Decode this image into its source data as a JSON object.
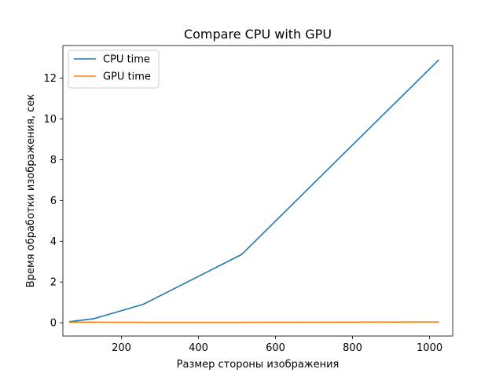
{
  "chart_data": {
    "type": "line",
    "title": "Compare CPU with GPU",
    "xlabel": "Размер стороны изображения",
    "ylabel": "Время обработки изображения, сек",
    "xlim": [
      48,
      1060
    ],
    "ylim": [
      -0.65,
      13.6
    ],
    "xticks": [
      200,
      400,
      600,
      800,
      1000
    ],
    "yticks": [
      0,
      2,
      4,
      6,
      8,
      10,
      12
    ],
    "grid": false,
    "legend_position": "upper-left",
    "series": [
      {
        "name": "CPU time",
        "color": "#1f77b4",
        "x": [
          64,
          128,
          256,
          512,
          1024
        ],
        "y": [
          0.05,
          0.2,
          0.9,
          3.35,
          12.9
        ]
      },
      {
        "name": "GPU time",
        "color": "#ff7f0e",
        "x": [
          64,
          128,
          256,
          512,
          1024
        ],
        "y": [
          0.03,
          0.03,
          0.02,
          0.02,
          0.04
        ]
      }
    ]
  }
}
